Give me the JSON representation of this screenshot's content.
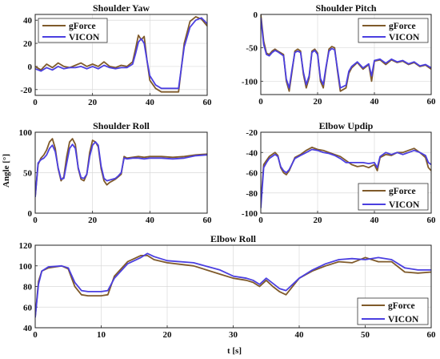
{
  "figure": {
    "ylabel": "Angle [°]",
    "xlabel": "t [s]",
    "colors": {
      "gForce": "#7f5a2a",
      "VICON": "#4b3fe0"
    }
  },
  "chart_data": [
    {
      "type": "line",
      "title": "Shoulder Yaw",
      "xlim": [
        0,
        60
      ],
      "ylim": [
        -25,
        45
      ],
      "xticks": [
        "0",
        "20",
        "40",
        "60"
      ],
      "yticks": [
        "-20",
        "0",
        "20",
        "40"
      ],
      "legend_position": "top-left",
      "grid": true,
      "series": [
        {
          "name": "gForce",
          "x": [
            0,
            2,
            4,
            6,
            8,
            10,
            12,
            14,
            16,
            18,
            20,
            22,
            24,
            26,
            28,
            30,
            32,
            34,
            35,
            36,
            37,
            38,
            39,
            40,
            42,
            44,
            46,
            48,
            50,
            52,
            54,
            56,
            58,
            60
          ],
          "y": [
            0,
            -3,
            2,
            -1,
            3,
            0,
            -1,
            1,
            3,
            0,
            2,
            0,
            4,
            0,
            -1,
            1,
            0,
            4,
            15,
            27,
            23,
            26,
            5,
            -12,
            -19,
            -22,
            -22,
            -22,
            -22,
            20,
            39,
            43,
            41,
            35
          ]
        },
        {
          "name": "VICON",
          "x": [
            0,
            2,
            4,
            6,
            8,
            10,
            12,
            14,
            16,
            18,
            20,
            22,
            24,
            26,
            28,
            30,
            32,
            34,
            35,
            36,
            37,
            38,
            39,
            40,
            42,
            44,
            46,
            48,
            50,
            52,
            54,
            56,
            58,
            60
          ],
          "y": [
            -2,
            -4,
            -1,
            -3,
            0,
            -2,
            -1,
            -1,
            0,
            -2,
            0,
            -2,
            1,
            -1,
            -2,
            -1,
            -1,
            2,
            11,
            21,
            24,
            20,
            5,
            -8,
            -16,
            -19,
            -19,
            -19,
            -19,
            17,
            34,
            40,
            42,
            37
          ]
        }
      ]
    },
    {
      "type": "line",
      "title": "Shoulder Pitch",
      "xlim": [
        0,
        60
      ],
      "ylim": [
        -120,
        0
      ],
      "xticks": [
        "0",
        "20",
        "40",
        "60"
      ],
      "yticks": [
        "0",
        "-50",
        "-100"
      ],
      "legend_position": "top-right",
      "grid": true,
      "series": [
        {
          "name": "gForce",
          "x": [
            0,
            1,
            2,
            3,
            4,
            5,
            6,
            8,
            9,
            10,
            11,
            12,
            13,
            14,
            15,
            16,
            17,
            18,
            19,
            20,
            21,
            22,
            23,
            24,
            25,
            26,
            27,
            28,
            30,
            31,
            32,
            34,
            36,
            38,
            39,
            40,
            42,
            44,
            46,
            48,
            50,
            52,
            54,
            56,
            58,
            60
          ],
          "y": [
            0,
            -40,
            -58,
            -60,
            -55,
            -52,
            -55,
            -60,
            -100,
            -115,
            -85,
            -55,
            -52,
            -55,
            -90,
            -110,
            -95,
            -55,
            -52,
            -58,
            -100,
            -110,
            -80,
            -52,
            -48,
            -50,
            -85,
            -115,
            -110,
            -88,
            -80,
            -72,
            -82,
            -75,
            -100,
            -70,
            -68,
            -75,
            -68,
            -72,
            -70,
            -75,
            -72,
            -78,
            -76,
            -82
          ]
        },
        {
          "name": "VICON",
          "x": [
            0,
            1,
            2,
            3,
            4,
            5,
            6,
            8,
            9,
            10,
            11,
            12,
            13,
            14,
            15,
            16,
            17,
            18,
            19,
            20,
            21,
            22,
            23,
            24,
            25,
            26,
            27,
            28,
            30,
            31,
            32,
            34,
            36,
            38,
            39,
            40,
            42,
            44,
            46,
            48,
            50,
            52,
            54,
            56,
            58,
            60
          ],
          "y": [
            -5,
            -45,
            -60,
            -62,
            -57,
            -54,
            -56,
            -62,
            -97,
            -110,
            -82,
            -57,
            -55,
            -57,
            -87,
            -105,
            -92,
            -57,
            -54,
            -60,
            -96,
            -105,
            -78,
            -55,
            -51,
            -53,
            -82,
            -110,
            -106,
            -85,
            -78,
            -71,
            -80,
            -74,
            -92,
            -69,
            -67,
            -73,
            -67,
            -71,
            -69,
            -74,
            -71,
            -77,
            -75,
            -80
          ]
        }
      ]
    },
    {
      "type": "line",
      "title": "Shoulder Roll",
      "xlim": [
        0,
        60
      ],
      "ylim": [
        0,
        100
      ],
      "xticks": [
        "0",
        "20",
        "40",
        "60"
      ],
      "yticks": [
        "0",
        "50",
        "100"
      ],
      "legend_position": "none",
      "grid": true,
      "series": [
        {
          "name": "gForce",
          "x": [
            0,
            1,
            2,
            3,
            4,
            5,
            6,
            7,
            8,
            9,
            10,
            11,
            12,
            13,
            14,
            15,
            16,
            17,
            18,
            19,
            20,
            21,
            22,
            23,
            24,
            25,
            26,
            27,
            28,
            29,
            30,
            31,
            32,
            34,
            36,
            38,
            40,
            44,
            48,
            52,
            56,
            60
          ],
          "y": [
            20,
            60,
            68,
            72,
            78,
            88,
            92,
            80,
            55,
            40,
            45,
            70,
            88,
            92,
            85,
            55,
            42,
            40,
            48,
            75,
            90,
            88,
            82,
            55,
            40,
            35,
            38,
            40,
            42,
            45,
            48,
            70,
            68,
            69,
            70,
            69,
            70,
            70,
            69,
            70,
            72,
            73
          ]
        },
        {
          "name": "VICON",
          "x": [
            0,
            1,
            2,
            3,
            4,
            5,
            6,
            7,
            8,
            9,
            10,
            11,
            12,
            13,
            14,
            15,
            16,
            17,
            18,
            19,
            20,
            21,
            22,
            23,
            24,
            25,
            26,
            27,
            28,
            29,
            30,
            31,
            32,
            34,
            36,
            38,
            40,
            44,
            48,
            52,
            56,
            60
          ],
          "y": [
            20,
            62,
            66,
            68,
            72,
            80,
            84,
            76,
            56,
            42,
            43,
            62,
            80,
            85,
            80,
            56,
            44,
            43,
            48,
            70,
            84,
            88,
            84,
            58,
            43,
            40,
            41,
            42,
            43,
            46,
            50,
            68,
            67,
            68,
            68,
            67,
            68,
            68,
            67,
            68,
            71,
            72
          ]
        }
      ]
    },
    {
      "type": "line",
      "title": "Elbow Updip",
      "xlim": [
        0,
        60
      ],
      "ylim": [
        -100,
        -20
      ],
      "xticks": [
        "0",
        "20",
        "40",
        "60"
      ],
      "yticks": [
        "-20",
        "-40",
        "-60",
        "-80",
        "-100"
      ],
      "legend_position": "bottom-right",
      "grid": true,
      "series": [
        {
          "name": "gForce",
          "x": [
            0,
            1,
            2,
            3,
            4,
            5,
            6,
            7,
            8,
            9,
            10,
            12,
            14,
            16,
            18,
            20,
            22,
            24,
            26,
            28,
            30,
            32,
            34,
            36,
            38,
            40,
            41,
            42,
            44,
            46,
            48,
            50,
            52,
            54,
            56,
            58,
            59,
            60
          ],
          "y": [
            -90,
            -52,
            -48,
            -44,
            -42,
            -40,
            -43,
            -55,
            -60,
            -62,
            -58,
            -45,
            -42,
            -38,
            -35,
            -37,
            -38,
            -40,
            -42,
            -44,
            -48,
            -52,
            -54,
            -53,
            -55,
            -52,
            -58,
            -45,
            -42,
            -43,
            -40,
            -40,
            -38,
            -36,
            -40,
            -45,
            -55,
            -58
          ]
        },
        {
          "name": "VICON",
          "x": [
            0,
            1,
            2,
            3,
            4,
            5,
            6,
            7,
            8,
            9,
            10,
            12,
            14,
            16,
            18,
            20,
            22,
            24,
            26,
            28,
            30,
            32,
            34,
            36,
            38,
            40,
            41,
            42,
            44,
            46,
            48,
            50,
            52,
            54,
            56,
            58,
            59,
            60
          ],
          "y": [
            -95,
            -55,
            -50,
            -46,
            -44,
            -42,
            -44,
            -54,
            -58,
            -60,
            -57,
            -46,
            -43,
            -40,
            -37,
            -38,
            -40,
            -41,
            -43,
            -46,
            -50,
            -50,
            -50,
            -50,
            -51,
            -50,
            -55,
            -44,
            -40,
            -42,
            -40,
            -42,
            -40,
            -38,
            -40,
            -43,
            -50,
            -52
          ]
        }
      ]
    },
    {
      "type": "line",
      "title": "Elbow Roll",
      "xlim": [
        0,
        60
      ],
      "ylim": [
        40,
        120
      ],
      "xticks": [
        "0",
        "10",
        "20",
        "30",
        "40",
        "50",
        "60"
      ],
      "yticks": [
        "40",
        "60",
        "80",
        "100",
        "120"
      ],
      "legend_position": "bottom-right",
      "grid": true,
      "series": [
        {
          "name": "gForce",
          "x": [
            0,
            0.5,
            1,
            2,
            4,
            5,
            6,
            7,
            8,
            10,
            11,
            12,
            14,
            16,
            17,
            18,
            20,
            24,
            28,
            30,
            32,
            33,
            34,
            35,
            36,
            37,
            38,
            40,
            42,
            44,
            46,
            48,
            50,
            52,
            54,
            56,
            58,
            60
          ],
          "y": [
            50,
            85,
            95,
            98,
            100,
            97,
            80,
            72,
            71,
            71,
            72,
            90,
            104,
            110,
            110,
            106,
            103,
            100,
            92,
            88,
            86,
            84,
            80,
            86,
            80,
            75,
            72,
            88,
            95,
            100,
            104,
            103,
            108,
            104,
            104,
            94,
            93,
            94
          ]
        },
        {
          "name": "VICON",
          "x": [
            0,
            0.5,
            1,
            2,
            4,
            5,
            6,
            7,
            8,
            10,
            11,
            12,
            14,
            16,
            17,
            18,
            20,
            24,
            28,
            30,
            32,
            33,
            34,
            35,
            36,
            37,
            38,
            40,
            42,
            44,
            46,
            48,
            50,
            52,
            54,
            56,
            58,
            60
          ],
          "y": [
            50,
            82,
            95,
            99,
            100,
            98,
            84,
            76,
            75,
            75,
            76,
            88,
            102,
            108,
            112,
            109,
            105,
            103,
            96,
            90,
            88,
            86,
            82,
            88,
            83,
            78,
            76,
            88,
            96,
            102,
            106,
            107,
            106,
            108,
            106,
            98,
            96,
            96
          ]
        }
      ]
    }
  ]
}
